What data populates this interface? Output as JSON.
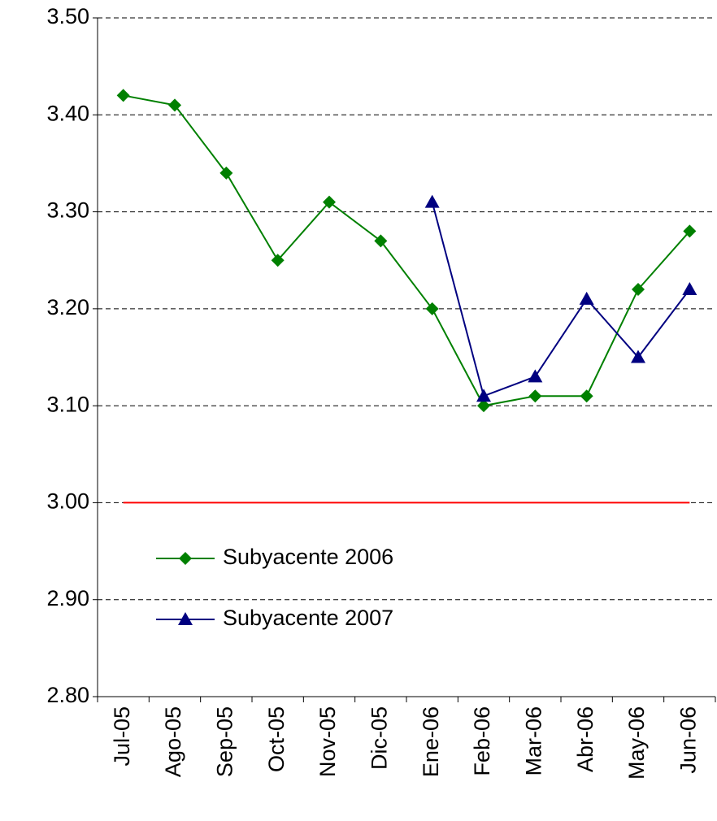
{
  "chart_data": {
    "type": "line",
    "categories": [
      "Jul-05",
      "Ago-05",
      "Sep-05",
      "Oct-05",
      "Nov-05",
      "Dic-05",
      "Ene-06",
      "Feb-06",
      "Mar-06",
      "Abr-06",
      "May-06",
      "Jun-06"
    ],
    "series": [
      {
        "name": "Subyacente 2006",
        "color": "#008000",
        "marker": "diamond",
        "values": [
          3.42,
          3.41,
          3.34,
          3.25,
          3.31,
          3.27,
          3.2,
          3.1,
          3.11,
          3.11,
          3.22,
          3.28
        ]
      },
      {
        "name": "Subyacente 2007",
        "color": "#000080",
        "marker": "triangle",
        "values": [
          null,
          null,
          null,
          null,
          null,
          null,
          3.31,
          3.11,
          3.13,
          3.21,
          3.15,
          3.22
        ]
      }
    ],
    "reference_line": {
      "value": 3.0,
      "color": "#ff0000"
    },
    "ylim": [
      2.8,
      3.5
    ],
    "yticks": [
      {
        "value": 2.8,
        "label": "2.80"
      },
      {
        "value": 2.9,
        "label": "2.90"
      },
      {
        "value": 3.0,
        "label": "3.00"
      },
      {
        "value": 3.1,
        "label": "3.10"
      },
      {
        "value": 3.2,
        "label": "3.20"
      },
      {
        "value": 3.3,
        "label": "3.30"
      },
      {
        "value": 3.4,
        "label": "3.40"
      },
      {
        "value": 3.5,
        "label": "3.50"
      }
    ],
    "grid": true,
    "legend": "lower left"
  }
}
